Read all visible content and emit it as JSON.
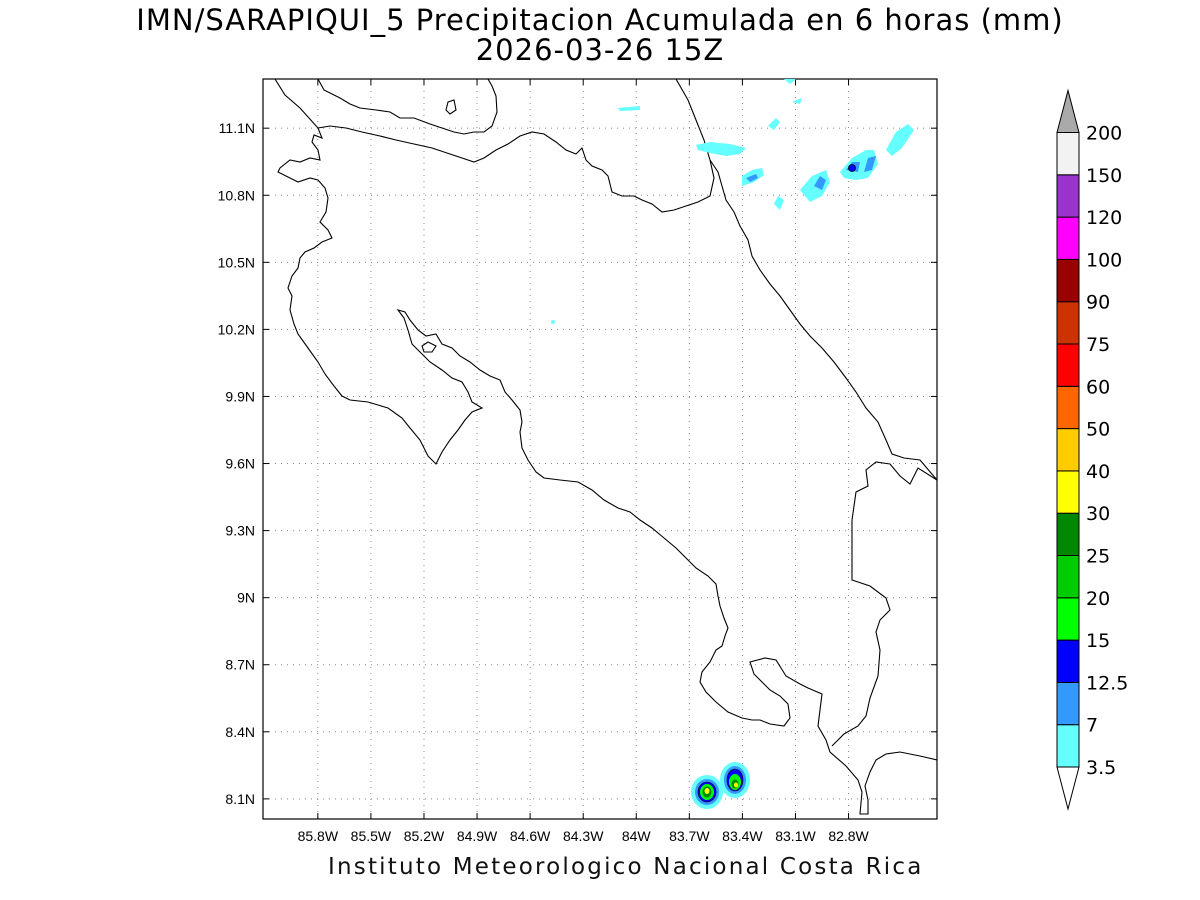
{
  "title": "IMN/SARAPIQUI_5 Precipitacion Acumulada en 6 horas (mm)",
  "subtitle": "2026-03-26 15Z",
  "credit": "Instituto Meteorologico Nacional Costa Rica",
  "map": {
    "lon_range": [
      -86.11,
      -82.3
    ],
    "lat_range": [
      8.01,
      11.32
    ],
    "lon_ticks": [
      "85.8W",
      "85.5W",
      "85.2W",
      "84.9W",
      "84.6W",
      "84.3W",
      "84W",
      "83.7W",
      "83.4W",
      "83.1W",
      "82.8W"
    ],
    "lat_ticks": [
      "8.1N",
      "8.4N",
      "8.7N",
      "9N",
      "9.3N",
      "9.6N",
      "9.9N",
      "10.2N",
      "10.5N",
      "10.8N",
      "11.1N"
    ],
    "grid": "dotted"
  },
  "colorbar": {
    "levels": [
      "3.5",
      "7",
      "12.5",
      "15",
      "20",
      "25",
      "30",
      "40",
      "50",
      "60",
      "75",
      "90",
      "100",
      "120",
      "150",
      "200"
    ],
    "colors": [
      "#ffffff",
      "#66ffff",
      "#3399ff",
      "#0000ff",
      "#00ff00",
      "#00cc00",
      "#008800",
      "#ffff00",
      "#ffcc00",
      "#ff6600",
      "#ff0000",
      "#cc3300",
      "#990000",
      "#ff00ff",
      "#9933cc",
      "#f2f2f2",
      "#aaaaaa"
    ]
  }
}
